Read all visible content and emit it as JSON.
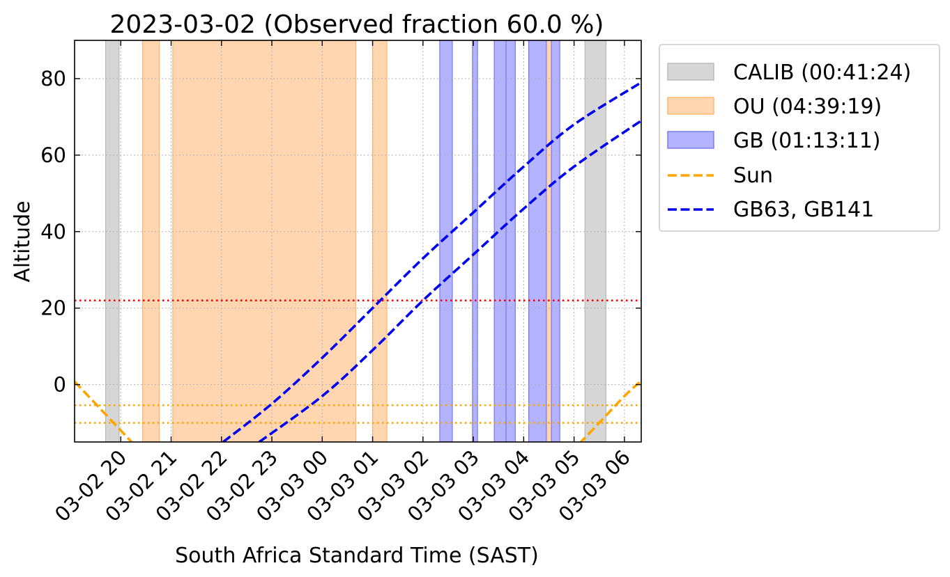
{
  "chart_data": {
    "type": "area",
    "title": "2023-03-02 (Observed fraction 60.0 %)",
    "xlabel": "South Africa Standard Time (SAST)",
    "ylabel": "Altitude",
    "x_unit": "hours",
    "xlim": [
      "2023-03-02 19:05",
      "2023-03-03 06:20"
    ],
    "ylim": [
      -15,
      90
    ],
    "grid": true,
    "x_ticks": [
      {
        "label": "03-02 20",
        "at": "2023-03-02 20:00"
      },
      {
        "label": "03-02 21",
        "at": "2023-03-02 21:00"
      },
      {
        "label": "03-02 22",
        "at": "2023-03-02 22:00"
      },
      {
        "label": "03-02 23",
        "at": "2023-03-02 23:00"
      },
      {
        "label": "03-03 00",
        "at": "2023-03-03 00:00"
      },
      {
        "label": "03-03 01",
        "at": "2023-03-03 01:00"
      },
      {
        "label": "03-03 02",
        "at": "2023-03-03 02:00"
      },
      {
        "label": "03-03 03",
        "at": "2023-03-03 03:00"
      },
      {
        "label": "03-03 04",
        "at": "2023-03-03 04:00"
      },
      {
        "label": "03-03 05",
        "at": "2023-03-03 05:00"
      },
      {
        "label": "03-03 06",
        "at": "2023-03-03 06:00"
      }
    ],
    "y_ticks": [
      0,
      20,
      40,
      60,
      80
    ],
    "legend_position": "outside-right",
    "bands": [
      {
        "name": "CALIB (00:41:24)",
        "color": "#d6d6d6",
        "edge": "#b8b8b8",
        "intervals": [
          [
            "2023-03-02 19:42",
            "2023-03-02 19:58"
          ],
          [
            "2023-03-03 05:13",
            "2023-03-03 05:38"
          ]
        ]
      },
      {
        "name": "OU (04:39:19)",
        "color": "#ffd6b0",
        "edge": "#ffb46a",
        "intervals": [
          [
            "2023-03-02 20:26",
            "2023-03-02 20:46"
          ],
          [
            "2023-03-02 21:02",
            "2023-03-03 00:40"
          ],
          [
            "2023-03-03 01:00",
            "2023-03-03 01:17"
          ],
          [
            "2023-03-03 03:25",
            "2023-03-03 03:39"
          ],
          [
            "2023-03-03 04:26",
            "2023-03-03 04:33"
          ]
        ]
      },
      {
        "name": "GB (01:13:11)",
        "color": "#b3b3ff",
        "edge": "#7777ee",
        "intervals": [
          [
            "2023-03-03 02:20",
            "2023-03-03 02:35"
          ],
          [
            "2023-03-03 02:59",
            "2023-03-03 03:05"
          ],
          [
            "2023-03-03 03:25",
            "2023-03-03 03:39"
          ],
          [
            "2023-03-03 03:39",
            "2023-03-03 03:50"
          ],
          [
            "2023-03-03 04:06",
            "2023-03-03 04:27"
          ],
          [
            "2023-03-03 04:33",
            "2023-03-03 04:43"
          ]
        ]
      }
    ],
    "series": [
      {
        "name": "Sun",
        "color": "#ffa500",
        "style": "dashed",
        "points": [
          [
            "2023-03-02 19:05",
            0.8
          ],
          [
            "2023-03-02 19:30",
            -5
          ],
          [
            "2023-03-02 20:00",
            -12
          ],
          [
            "2023-03-02 20:15",
            -15.5
          ]
        ],
        "points_2": [
          [
            "2023-03-03 05:06",
            -15.5
          ],
          [
            "2023-03-03 05:30",
            -10
          ],
          [
            "2023-03-03 06:00",
            -3
          ],
          [
            "2023-03-03 06:20",
            1
          ]
        ]
      },
      {
        "name": "GB63, GB141",
        "color": "#0000ee",
        "style": "dashed",
        "points": [
          [
            "2023-03-02 22:02",
            -15
          ],
          [
            "2023-03-02 23:00",
            -5
          ],
          [
            "2023-03-03 00:00",
            7
          ],
          [
            "2023-03-03 01:00",
            20
          ],
          [
            "2023-03-03 02:00",
            33
          ],
          [
            "2023-03-03 03:00",
            45
          ],
          [
            "2023-03-03 04:00",
            57
          ],
          [
            "2023-03-03 05:00",
            68
          ],
          [
            "2023-03-03 06:20",
            79
          ]
        ],
        "points_2": [
          [
            "2023-03-02 22:45",
            -15
          ],
          [
            "2023-03-03 00:00",
            -3
          ],
          [
            "2023-03-03 01:00",
            9
          ],
          [
            "2023-03-03 02:00",
            22
          ],
          [
            "2023-03-03 03:00",
            34
          ],
          [
            "2023-03-03 04:00",
            46
          ],
          [
            "2023-03-03 05:00",
            57
          ],
          [
            "2023-03-03 06:20",
            69
          ]
        ]
      }
    ],
    "hlines": [
      {
        "y": 22,
        "color": "#ff0000",
        "style": "dotted"
      },
      {
        "y": -5.4,
        "color": "#ffa500",
        "style": "dotted"
      },
      {
        "y": -10,
        "color": "#ffa500",
        "style": "dotted"
      }
    ]
  }
}
